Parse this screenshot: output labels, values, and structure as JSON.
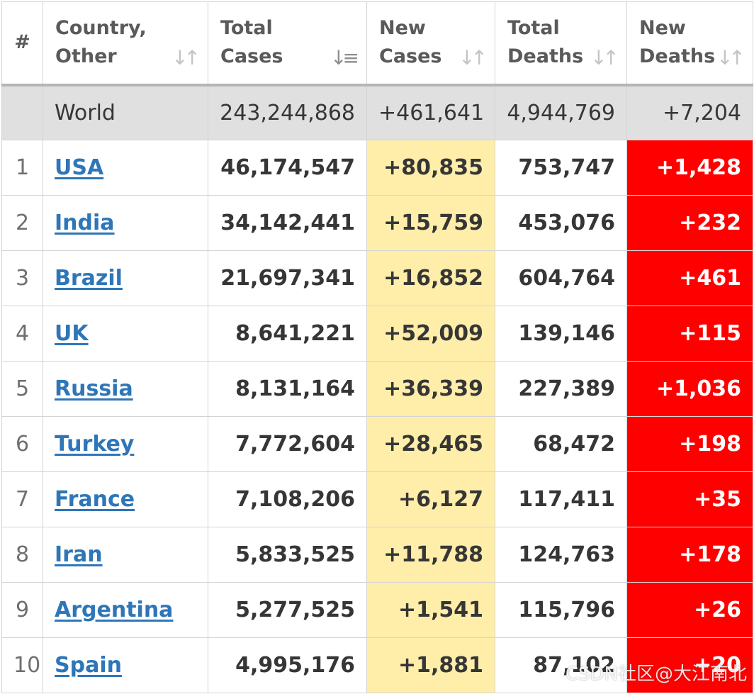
{
  "table": {
    "headers": {
      "index": "#",
      "country_1": "Country,",
      "country_2": "Other",
      "total_cases_1": "Total",
      "total_cases_2": "Cases",
      "new_cases_1": "New",
      "new_cases_2": "Cases",
      "total_deaths_1": "Total",
      "total_deaths_2": "Deaths",
      "new_deaths_1": "New",
      "new_deaths_2": "Deaths"
    },
    "world": {
      "country": "World",
      "total_cases": "243,244,868",
      "new_cases": "+461,641",
      "total_deaths": "4,944,769",
      "new_deaths": "+7,204"
    },
    "rows": [
      {
        "index": "1",
        "country": "USA",
        "total_cases": "46,174,547",
        "new_cases": "+80,835",
        "total_deaths": "753,747",
        "new_deaths": "+1,428"
      },
      {
        "index": "2",
        "country": "India",
        "total_cases": "34,142,441",
        "new_cases": "+15,759",
        "total_deaths": "453,076",
        "new_deaths": "+232"
      },
      {
        "index": "3",
        "country": "Brazil",
        "total_cases": "21,697,341",
        "new_cases": "+16,852",
        "total_deaths": "604,764",
        "new_deaths": "+461"
      },
      {
        "index": "4",
        "country": "UK",
        "total_cases": "8,641,221",
        "new_cases": "+52,009",
        "total_deaths": "139,146",
        "new_deaths": "+115"
      },
      {
        "index": "5",
        "country": "Russia",
        "total_cases": "8,131,164",
        "new_cases": "+36,339",
        "total_deaths": "227,389",
        "new_deaths": "+1,036"
      },
      {
        "index": "6",
        "country": "Turkey",
        "total_cases": "7,772,604",
        "new_cases": "+28,465",
        "total_deaths": "68,472",
        "new_deaths": "+198"
      },
      {
        "index": "7",
        "country": "France",
        "total_cases": "7,108,206",
        "new_cases": "+6,127",
        "total_deaths": "117,411",
        "new_deaths": "+35"
      },
      {
        "index": "8",
        "country": "Iran",
        "total_cases": "5,833,525",
        "new_cases": "+11,788",
        "total_deaths": "124,763",
        "new_deaths": "+178"
      },
      {
        "index": "9",
        "country": "Argentina",
        "total_cases": "5,277,525",
        "new_cases": "+1,541",
        "total_deaths": "115,796",
        "new_deaths": "+26"
      },
      {
        "index": "10",
        "country": "Spain",
        "total_cases": "4,995,176",
        "new_cases": "+1,881",
        "total_deaths": "87,102",
        "new_deaths": "+20"
      }
    ]
  },
  "icons": {
    "sort": "sort-icon",
    "sort_active": "sort-desc-icon"
  },
  "colors": {
    "link": "#2e76b8",
    "new_cases_bg": "#ffeeaa",
    "new_deaths_bg": "#ff0000",
    "world_bg": "#e0e0e0"
  },
  "watermark": "CSDN社区@大江南北"
}
